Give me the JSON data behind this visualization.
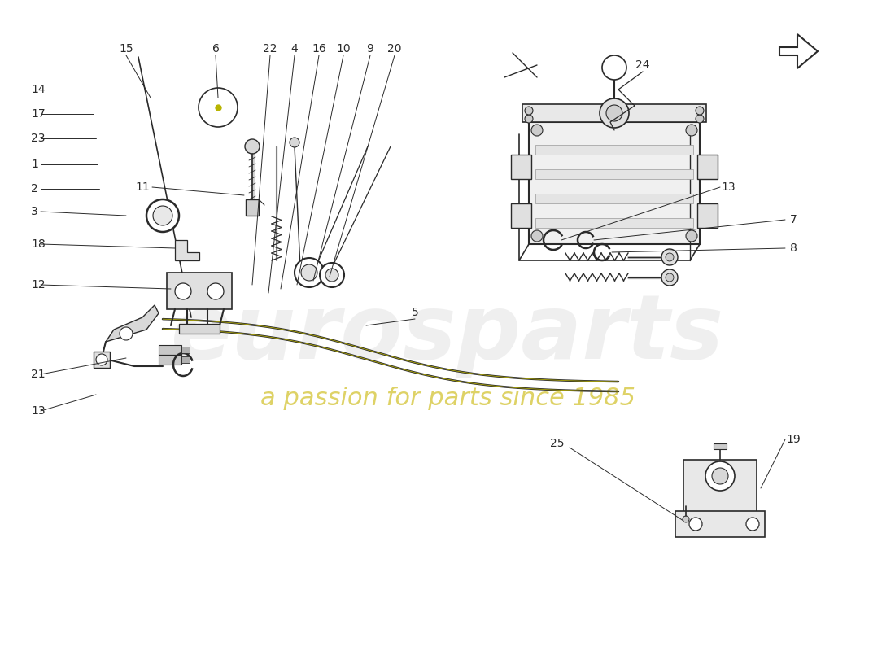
{
  "background_color": "#ffffff",
  "line_color": "#2a2a2a",
  "label_color": "#2a2a2a",
  "watermark_color": "#cccccc",
  "watermark_subtext_color": "#c8b400",
  "figsize": [
    11.0,
    8.0
  ],
  "dpi": 100
}
